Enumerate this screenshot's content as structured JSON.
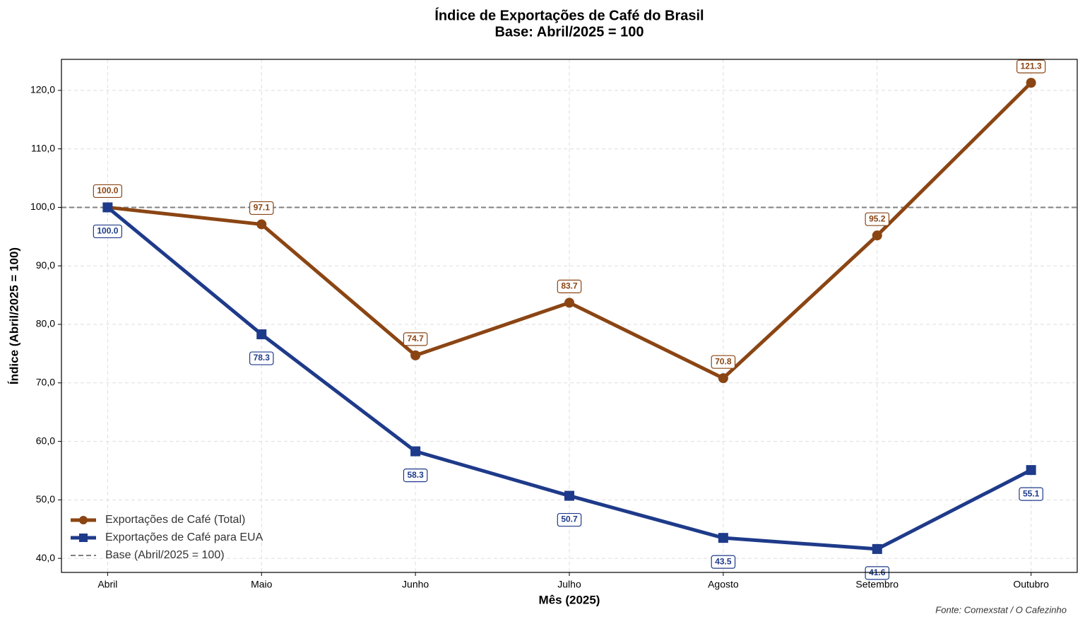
{
  "chart_data": {
    "type": "line",
    "title": "Índice de Exportações de Café do Brasil",
    "subtitle": "Base: Abril/2025 = 100",
    "x_label": "Mês (2025)",
    "y_label": "Índice (Abril/2025 = 100)",
    "source": "Fonte: Comexstat / O Cafezinho",
    "categories": [
      "Abril",
      "Maio",
      "Junho",
      "Julho",
      "Agosto",
      "Setembro",
      "Outubro"
    ],
    "series": [
      {
        "name": "Exportações de Café (Total)",
        "color": "#8B4513",
        "marker": "circle",
        "values": [
          100,
          97.1,
          74.7,
          83.7,
          70.8,
          95.2,
          121.3
        ],
        "value_labels": [
          "100.0",
          "97.1",
          "74.7",
          "83.7",
          "70.8",
          "95.2",
          "121.3"
        ]
      },
      {
        "name": "Exportações de Café para EUA",
        "color": "#1E3A8A",
        "marker": "square",
        "values": [
          100,
          78.3,
          58.3,
          50.7,
          43.5,
          41.6,
          55.1
        ],
        "value_labels": [
          "100.0",
          "78.3",
          "58.3",
          "50.7",
          "43.5",
          "41.6",
          "55.1"
        ]
      }
    ],
    "reference_line": {
      "value": 100,
      "name": "Base (Abril/2025 = 100)",
      "color": "#808080"
    },
    "ylim": [
      37.6,
      125.3
    ],
    "yticks": [
      {
        "value": 40,
        "label": "40,0"
      },
      {
        "value": 50,
        "label": "50,0"
      },
      {
        "value": 60,
        "label": "60,0"
      },
      {
        "value": 70,
        "label": "70,0"
      },
      {
        "value": 80,
        "label": "80,0"
      },
      {
        "value": 90,
        "label": "90,0"
      },
      {
        "value": 100,
        "label": "100,0"
      },
      {
        "value": 110,
        "label": "110,0"
      },
      {
        "value": 120,
        "label": "120,0"
      }
    ],
    "grid": true,
    "legend": "lower left"
  }
}
